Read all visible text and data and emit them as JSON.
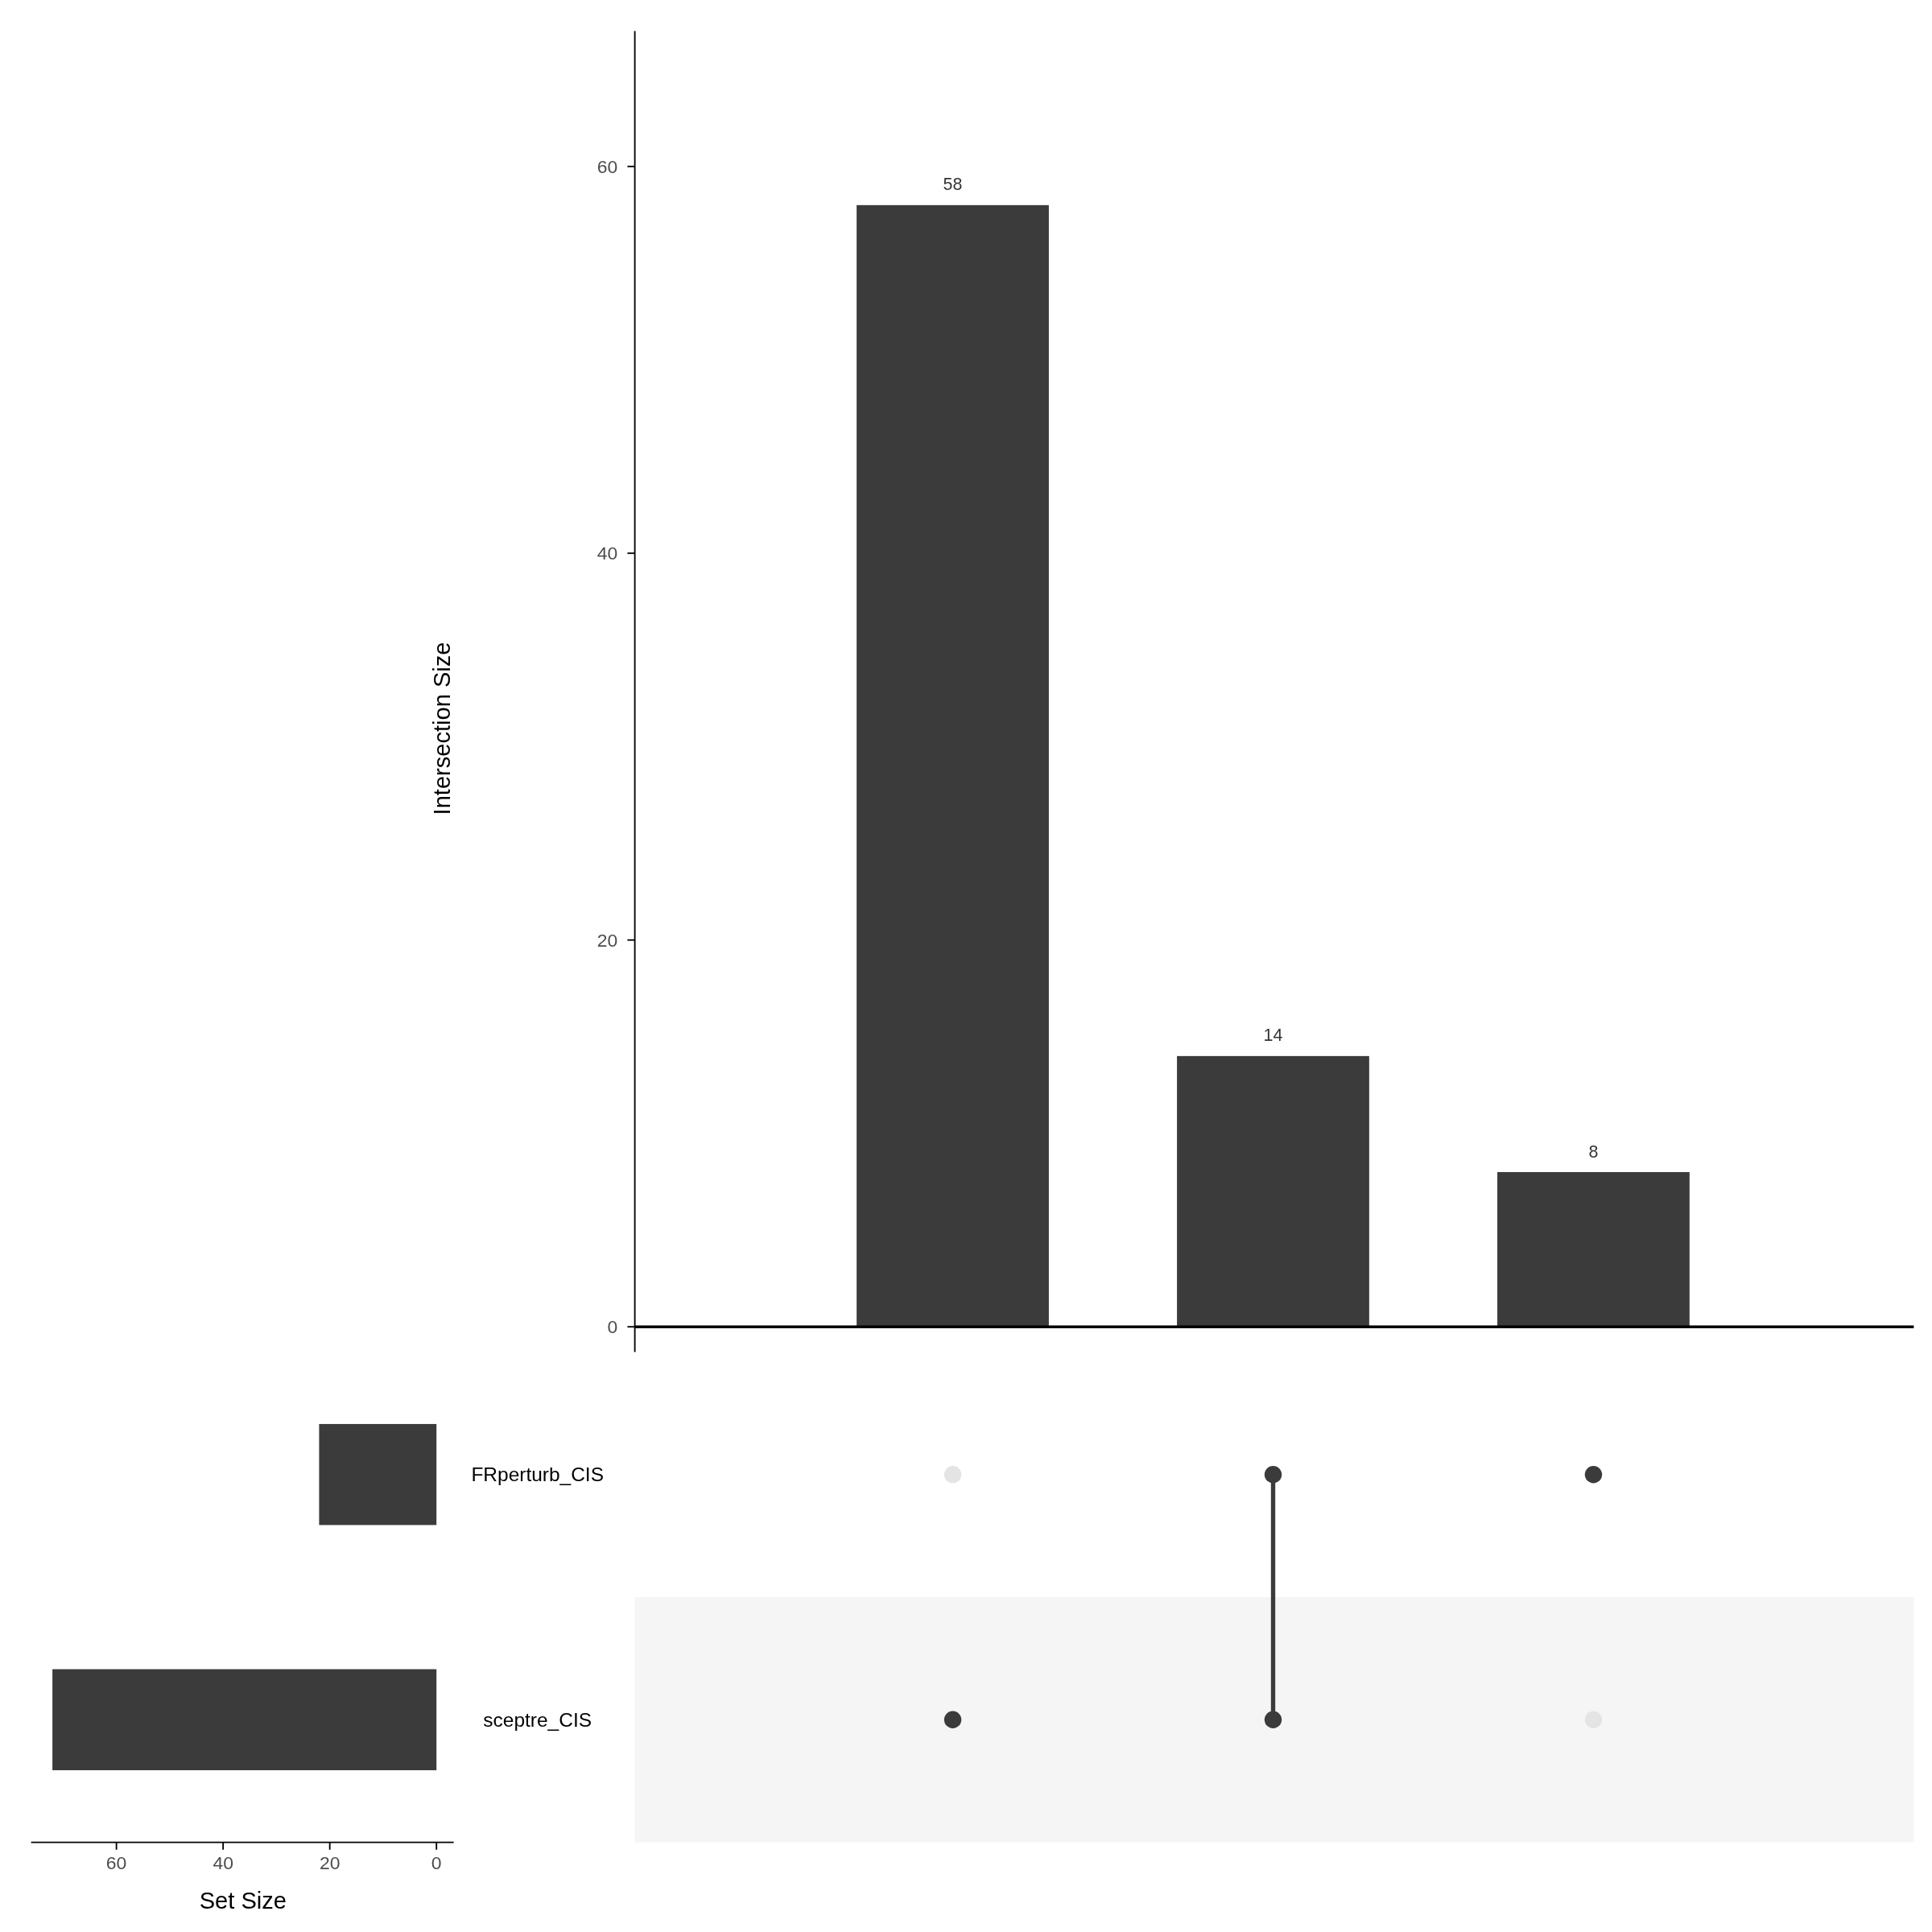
{
  "chart_data": [
    {
      "type": "bar",
      "ylabel": "Intersection Size",
      "categories": [
        null,
        null,
        null
      ],
      "values": [
        58,
        14,
        8
      ],
      "color": "#3b3b3b",
      "ylim": [
        -1.3,
        67
      ],
      "yticks": [
        0,
        20,
        40,
        60
      ],
      "data_labels": true,
      "ref_lines": [
        {
          "axis": "y",
          "value": 0,
          "color": "#000000"
        }
      ]
    },
    {
      "type": "bar",
      "orientation": "horizontal",
      "xlabel": "Set Size",
      "categories": [
        "FRperturb_CIS",
        "sceptre_CIS"
      ],
      "values": [
        22,
        72
      ],
      "color": "#3b3b3b",
      "xlim": [
        76,
        0
      ],
      "xticks": [
        60,
        40,
        20,
        0
      ]
    }
  ]
}
